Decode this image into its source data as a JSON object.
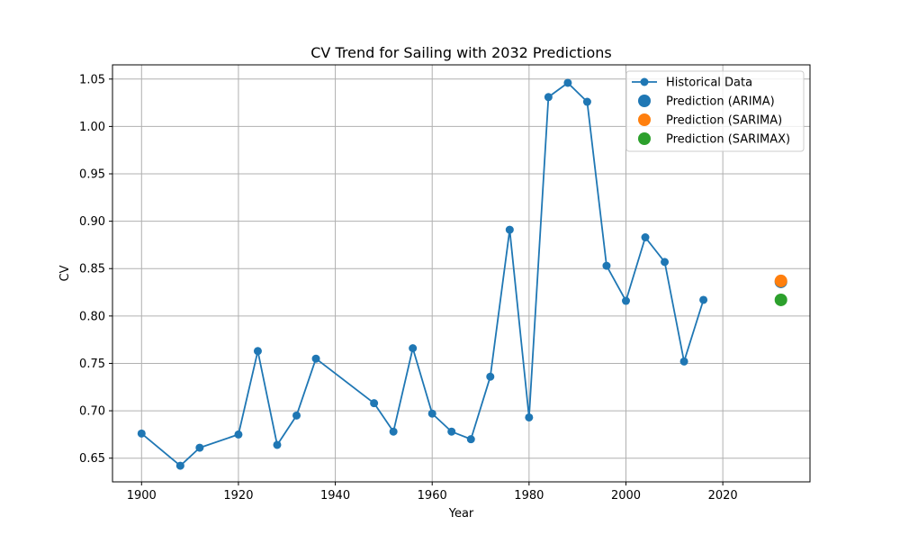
{
  "chart_data": {
    "type": "line",
    "title": "CV Trend for Sailing with 2032 Predictions",
    "xlabel": "Year",
    "ylabel": "CV",
    "xlim": [
      1894,
      2038
    ],
    "ylim": [
      0.625,
      1.065
    ],
    "xticks": [
      1900,
      1920,
      1940,
      1960,
      1980,
      2000,
      2020
    ],
    "xtick_labels": [
      "1900",
      "1920",
      "1940",
      "1960",
      "1980",
      "2000",
      "2020"
    ],
    "yticks": [
      0.65,
      0.7,
      0.75,
      0.8,
      0.85,
      0.9,
      0.95,
      1.0,
      1.05
    ],
    "ytick_labels": [
      "0.65",
      "0.70",
      "0.75",
      "0.80",
      "0.85",
      "0.90",
      "0.95",
      "1.00",
      "1.05"
    ],
    "grid": true,
    "legend_position": "top-right",
    "series": [
      {
        "name": "Historical Data",
        "kind": "line-marker",
        "color": "#1f77b4",
        "x": [
          1900,
          1908,
          1912,
          1920,
          1924,
          1928,
          1932,
          1936,
          1948,
          1952,
          1956,
          1960,
          1964,
          1968,
          1972,
          1976,
          1980,
          1984,
          1988,
          1992,
          1996,
          2000,
          2004,
          2008,
          2012,
          2016
        ],
        "y": [
          0.676,
          0.642,
          0.661,
          0.675,
          0.763,
          0.664,
          0.695,
          0.755,
          0.708,
          0.678,
          0.766,
          0.697,
          0.678,
          0.67,
          0.736,
          0.891,
          0.693,
          1.031,
          1.046,
          1.026,
          0.853,
          0.816,
          0.883,
          0.857,
          0.752,
          0.817
        ]
      },
      {
        "name": "Prediction (ARIMA)",
        "kind": "point",
        "color": "#1f77b4",
        "x": [
          2032
        ],
        "y": [
          0.836
        ]
      },
      {
        "name": "Prediction (SARIMA)",
        "kind": "point",
        "color": "#ff7f0e",
        "x": [
          2032
        ],
        "y": [
          0.837
        ]
      },
      {
        "name": "Prediction (SARIMAX)",
        "kind": "point",
        "color": "#2ca02c",
        "x": [
          2032
        ],
        "y": [
          0.817
        ]
      }
    ]
  }
}
